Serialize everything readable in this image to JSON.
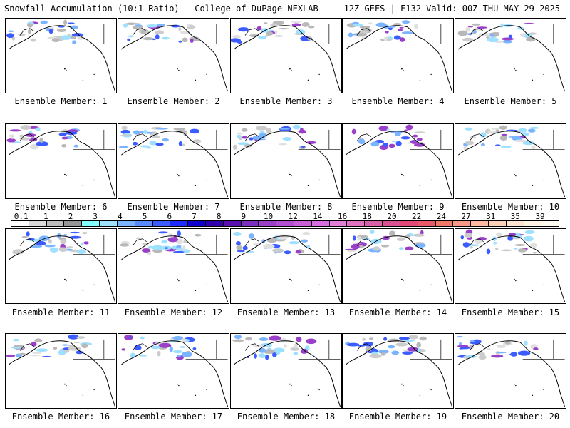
{
  "header": {
    "left": "Snowfall Accumulation (10:1 Ratio) | College of DuPage NEXLAB",
    "right": "12Z GEFS | F132 Valid: 00Z THU MAY 29 2025"
  },
  "members": [
    "Ensemble Member: 1",
    "Ensemble Member: 2",
    "Ensemble Member: 3",
    "Ensemble Member: 4",
    "Ensemble Member: 5",
    "Ensemble Member: 6",
    "Ensemble Member: 7",
    "Ensemble Member: 8",
    "Ensemble Member: 9",
    "Ensemble Member: 10",
    "Ensemble Member: 11",
    "Ensemble Member: 12",
    "Ensemble Member: 13",
    "Ensemble Member: 14",
    "Ensemble Member: 15",
    "Ensemble Member: 16",
    "Ensemble Member: 17",
    "Ensemble Member: 18",
    "Ensemble Member: 19",
    "Ensemble Member: 20"
  ],
  "colorbar": {
    "labels": [
      "0.1",
      "1",
      "2",
      "3",
      "4",
      "5",
      "6",
      "7",
      "8",
      "9",
      "10",
      "12",
      "14",
      "16",
      "18",
      "20",
      "22",
      "24",
      "27",
      "31",
      "35",
      "39"
    ],
    "colors": [
      "#ffffff",
      "#d9d9d9",
      "#bdbdbd",
      "#969696",
      "#7fffff",
      "#9ee0ff",
      "#7ab4ff",
      "#5a8aff",
      "#3c5cff",
      "#1e2cff",
      "#1000d0",
      "#3000b0",
      "#5a0fb0",
      "#7a2fc0",
      "#9a3fc8",
      "#b24fd0",
      "#c85fd8",
      "#d86fe0",
      "#e07fd8",
      "#e070c0",
      "#d860a8",
      "#d85090",
      "#e04878",
      "#e85868",
      "#f07868",
      "#f89888",
      "#fcb8a0",
      "#fdd0b8",
      "#fee4d0",
      "#fff4e4",
      "#fffaf0"
    ]
  }
}
